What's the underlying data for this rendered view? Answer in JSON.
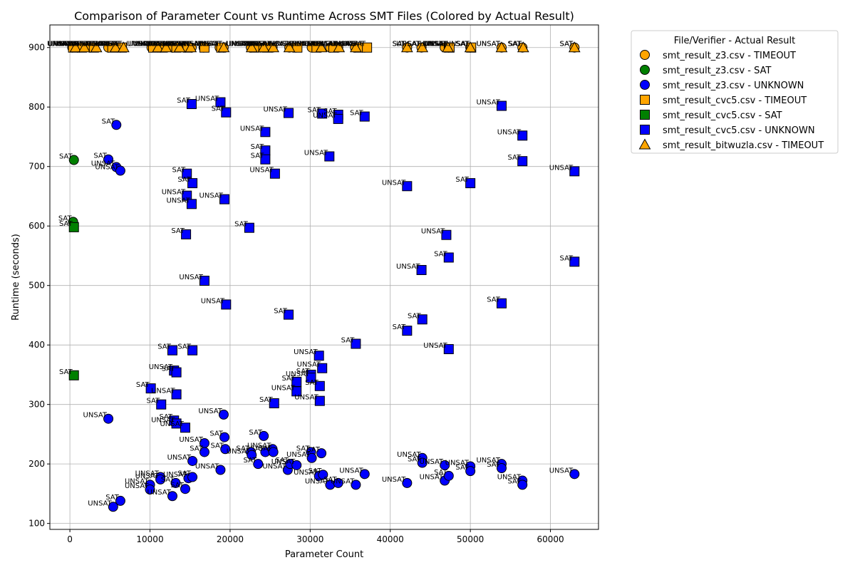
{
  "chart_data": {
    "type": "scatter",
    "title": "Comparison of Parameter Count vs Runtime Across SMT Files (Colored by Actual Result)",
    "xlabel": "Parameter Count",
    "ylabel": "Runtime (seconds)",
    "xlim": [
      -2500,
      66000
    ],
    "ylim": [
      90,
      938
    ],
    "xticks": [
      0,
      10000,
      20000,
      30000,
      40000,
      50000,
      60000
    ],
    "yticks": [
      100,
      200,
      300,
      400,
      500,
      600,
      700,
      800,
      900
    ],
    "grid": true,
    "legend_title": "File/Verifier - Actual Result",
    "legend_position": "outside-right-top",
    "colors": {
      "TIMEOUT": "#ffa500",
      "SAT": "#008000",
      "UNKNOWN": "#0000ff"
    },
    "series": [
      {
        "name": "smt_result_z3.csv - TIMEOUT",
        "marker": "circle",
        "color": "#ffa500",
        "points": [
          [
            300,
            900,
            "UNSAT"
          ],
          [
            1200,
            900,
            "UNSAT"
          ],
          [
            2500,
            900,
            "UNSAT"
          ],
          [
            4800,
            900,
            "UNSAT"
          ],
          [
            6300,
            900,
            "UNSAT"
          ],
          [
            10200,
            900,
            "UNSAT"
          ],
          [
            11300,
            900,
            "UNSAT"
          ],
          [
            12800,
            900,
            "UNSAT"
          ],
          [
            14400,
            900,
            "UNSAT"
          ],
          [
            15200,
            900,
            "UNSAT"
          ],
          [
            16700,
            900,
            "UNSAT"
          ],
          [
            18700,
            900,
            "UNSAT"
          ],
          [
            19200,
            900,
            "UNSAT"
          ],
          [
            22600,
            900,
            "UNSAT"
          ],
          [
            23800,
            900,
            "UNSAT"
          ],
          [
            25300,
            900,
            "UNSAT"
          ],
          [
            27400,
            900,
            "UNSAT"
          ],
          [
            28200,
            900,
            "UNSAT"
          ],
          [
            30200,
            900,
            "UNSAT"
          ],
          [
            31200,
            900,
            "UNSAT"
          ],
          [
            32500,
            900,
            "UNSAT"
          ],
          [
            33500,
            900,
            "UNSAT"
          ],
          [
            35600,
            900,
            "UNSAT"
          ],
          [
            36800,
            900,
            "UNSAT"
          ],
          [
            42100,
            900,
            "SAT"
          ],
          [
            43900,
            900,
            "UNSAT"
          ],
          [
            46800,
            900,
            "UNSAT"
          ],
          [
            47300,
            900,
            "UNSAT"
          ],
          [
            50000,
            900,
            "SAT"
          ],
          [
            53900,
            900,
            "UNSAT"
          ],
          [
            56500,
            900,
            "SAT"
          ],
          [
            63000,
            900,
            "SAT"
          ]
        ]
      },
      {
        "name": "smt_result_z3.csv - SAT",
        "marker": "circle",
        "color": "#008000",
        "points": [
          [
            500,
            711,
            "SAT"
          ],
          [
            400,
            607,
            "SAT"
          ]
        ]
      },
      {
        "name": "smt_result_z3.csv - UNKNOWN",
        "marker": "circle",
        "color": "#0000ff",
        "points": [
          [
            5800,
            770,
            "SAT"
          ],
          [
            4800,
            712,
            "SAT"
          ],
          [
            5800,
            699,
            "UNSAT"
          ],
          [
            6300,
            693,
            "UNSAT"
          ],
          [
            4800,
            276,
            "UNSAT"
          ],
          [
            6300,
            138,
            "SAT"
          ],
          [
            5400,
            128,
            "UNSAT"
          ],
          [
            10000,
            165,
            "UNSAT"
          ],
          [
            10000,
            157,
            "UNSAT"
          ],
          [
            11300,
            178,
            "UNSAT"
          ],
          [
            11300,
            174,
            "UNSAT"
          ],
          [
            12800,
            146,
            "UNSAT"
          ],
          [
            13200,
            168,
            "SAT"
          ],
          [
            14400,
            158,
            "SAT"
          ],
          [
            14800,
            176,
            "UNSAT"
          ],
          [
            15300,
            205,
            "UNSAT"
          ],
          [
            15300,
            178,
            "SAT"
          ],
          [
            16800,
            235,
            "UNSAT"
          ],
          [
            16800,
            220,
            "SAT"
          ],
          [
            18800,
            190,
            "UNSAT"
          ],
          [
            19200,
            283,
            "UNSAT"
          ],
          [
            19300,
            245,
            "SAT"
          ],
          [
            19400,
            225,
            "SAT"
          ],
          [
            22600,
            220,
            "SAT"
          ],
          [
            22700,
            215,
            "UNSAT"
          ],
          [
            23500,
            200,
            "SAT"
          ],
          [
            24200,
            247,
            "SAT"
          ],
          [
            24400,
            220,
            "SAT"
          ],
          [
            25300,
            225,
            "UNSAT"
          ],
          [
            25400,
            220,
            "SAT"
          ],
          [
            27200,
            190,
            "UNSAT"
          ],
          [
            27500,
            200,
            "SAT"
          ],
          [
            28300,
            198,
            "UNSAT"
          ],
          [
            30100,
            220,
            "SAT"
          ],
          [
            30200,
            210,
            "UNSAT"
          ],
          [
            31100,
            180,
            "UNSAT"
          ],
          [
            31400,
            218,
            "SAT"
          ],
          [
            31600,
            182,
            "SAT"
          ],
          [
            32500,
            165,
            "UNSAT"
          ],
          [
            33500,
            168,
            "SAT"
          ],
          [
            35700,
            165,
            "UNSAT"
          ],
          [
            36800,
            183,
            "UNSAT"
          ],
          [
            42100,
            168,
            "UNSAT"
          ],
          [
            44000,
            210,
            "UNSAT"
          ],
          [
            44000,
            202,
            "SAT"
          ],
          [
            46800,
            198,
            "UNSAT"
          ],
          [
            46800,
            172,
            "UNSAT"
          ],
          [
            47300,
            180,
            "SAT"
          ],
          [
            50000,
            196,
            "UNSAT"
          ],
          [
            50000,
            188,
            "SAT"
          ],
          [
            53900,
            200,
            "UNSAT"
          ],
          [
            53900,
            193,
            "SAT"
          ],
          [
            56500,
            172,
            "UNSAT"
          ],
          [
            56500,
            165,
            "SAT"
          ],
          [
            63000,
            183,
            "UNSAT"
          ]
        ]
      },
      {
        "name": "smt_result_cvc5.csv - TIMEOUT",
        "marker": "square",
        "color": "#ffa500",
        "points": [
          [
            400,
            900,
            "UNSAT"
          ],
          [
            1500,
            900,
            "UNSAT"
          ],
          [
            3000,
            900,
            "UNSAT"
          ],
          [
            5300,
            900,
            "UNSAT"
          ],
          [
            6500,
            900,
            "UNSAT"
          ],
          [
            10400,
            900,
            "UNSAT"
          ],
          [
            11600,
            900,
            "UNSAT"
          ],
          [
            13300,
            900,
            "UNSAT"
          ],
          [
            14700,
            900,
            "UNSAT"
          ],
          [
            16800,
            900,
            "UNSAT"
          ],
          [
            18900,
            900,
            "UNSAT"
          ],
          [
            23000,
            900,
            "UNSAT"
          ],
          [
            24600,
            900,
            "UNSAT"
          ],
          [
            28400,
            900,
            "UNSAT"
          ],
          [
            30800,
            900,
            "UNSAT"
          ],
          [
            32900,
            900,
            "UNSAT"
          ],
          [
            36000,
            900,
            "UNSAT"
          ],
          [
            37100,
            900,
            "UNSAT"
          ],
          [
            47400,
            900,
            "UNSAT"
          ],
          [
            50100,
            900,
            "UNSAT"
          ]
        ]
      },
      {
        "name": "smt_result_cvc5.csv - SAT",
        "marker": "square",
        "color": "#008000",
        "points": [
          [
            500,
            598,
            "SAT"
          ],
          [
            500,
            349,
            "SAT"
          ]
        ]
      },
      {
        "name": "smt_result_cvc5.csv - UNKNOWN",
        "marker": "square",
        "color": "#0000ff",
        "points": [
          [
            15200,
            805,
            "SAT"
          ],
          [
            18800,
            808,
            "UNSAT"
          ],
          [
            19500,
            791,
            "SAT"
          ],
          [
            27300,
            790,
            "UNSAT"
          ],
          [
            31500,
            789,
            "SAT"
          ],
          [
            33500,
            787,
            "SAT"
          ],
          [
            33500,
            780,
            "UNSAT"
          ],
          [
            36800,
            784,
            "SAT"
          ],
          [
            24400,
            758,
            "UNSAT"
          ],
          [
            24400,
            727,
            "SAT"
          ],
          [
            24400,
            712,
            "SAT"
          ],
          [
            32400,
            717,
            "UNSAT"
          ],
          [
            14600,
            688,
            "SAT"
          ],
          [
            15300,
            672,
            "SAT"
          ],
          [
            25600,
            688,
            "UNSAT"
          ],
          [
            14600,
            651,
            "UNSAT"
          ],
          [
            15200,
            637,
            "UNSAT"
          ],
          [
            19300,
            645,
            "UNSAT"
          ],
          [
            22400,
            597,
            "SAT"
          ],
          [
            14500,
            586,
            "SAT"
          ],
          [
            16800,
            508,
            "UNSAT"
          ],
          [
            19500,
            468,
            "UNSAT"
          ],
          [
            27300,
            451,
            "SAT"
          ],
          [
            35700,
            402,
            "SAT"
          ],
          [
            31100,
            382,
            "UNSAT"
          ],
          [
            31500,
            361,
            "UNSAT"
          ],
          [
            12800,
            391,
            "SAT"
          ],
          [
            15300,
            391,
            "SAT"
          ],
          [
            13000,
            357,
            "UNSAT"
          ],
          [
            13300,
            354,
            "SAT"
          ],
          [
            10100,
            327,
            "SAT"
          ],
          [
            13300,
            317,
            "UNSAT"
          ],
          [
            11400,
            300,
            "SAT"
          ],
          [
            25500,
            302,
            "SAT"
          ],
          [
            30100,
            350,
            "SAT"
          ],
          [
            30100,
            345,
            "UNSAT"
          ],
          [
            28300,
            338,
            "SAT"
          ],
          [
            28300,
            322,
            "UNSAT"
          ],
          [
            31200,
            331,
            "SAT"
          ],
          [
            31200,
            306,
            "UNSAT"
          ],
          [
            13000,
            273,
            "SAT"
          ],
          [
            13300,
            268,
            "UNSAT"
          ],
          [
            14400,
            261,
            "UNSAT"
          ],
          [
            53900,
            802,
            "UNSAT"
          ],
          [
            56500,
            752,
            "UNSAT"
          ],
          [
            56500,
            709,
            "SAT"
          ],
          [
            63000,
            692,
            "UNSAT"
          ],
          [
            42100,
            667,
            "UNSAT"
          ],
          [
            50000,
            672,
            "SAT"
          ],
          [
            47000,
            585,
            "UNSAT"
          ],
          [
            47300,
            547,
            "SAT"
          ],
          [
            43900,
            526,
            "UNSAT"
          ],
          [
            63000,
            540,
            "SAT"
          ],
          [
            53900,
            470,
            "SAT"
          ],
          [
            44000,
            443,
            "SAT"
          ],
          [
            42100,
            424,
            "SAT"
          ],
          [
            47300,
            393,
            "UNSAT"
          ]
        ]
      },
      {
        "name": "smt_result_bitwuzla.csv - TIMEOUT",
        "marker": "triangle",
        "color": "#ffa500",
        "points": [
          [
            700,
            900,
            "UNSAT"
          ],
          [
            1800,
            900,
            "UNSAT"
          ],
          [
            3300,
            900,
            "UNSAT"
          ],
          [
            5700,
            900,
            "UNSAT"
          ],
          [
            6700,
            900,
            "UNSAT"
          ],
          [
            11000,
            900,
            "UNSAT"
          ],
          [
            12000,
            900,
            "UNSAT"
          ],
          [
            13700,
            900,
            "UNSAT"
          ],
          [
            15100,
            900,
            "UNSAT"
          ],
          [
            19200,
            900,
            "UNSAT"
          ],
          [
            22700,
            900,
            "UNSAT"
          ],
          [
            24200,
            900,
            "UNSAT"
          ],
          [
            25400,
            900,
            "UNSAT"
          ],
          [
            27400,
            900,
            "UNSAT"
          ],
          [
            31400,
            900,
            "UNSAT"
          ],
          [
            33600,
            900,
            "UNSAT"
          ],
          [
            35700,
            900,
            "UNSAT"
          ],
          [
            42100,
            900,
            "SAT"
          ],
          [
            44000,
            900,
            "SAT"
          ],
          [
            47200,
            900,
            "UNSAT"
          ],
          [
            50000,
            900,
            "SAT"
          ],
          [
            53900,
            900,
            "UNSAT"
          ],
          [
            56600,
            900,
            "SAT"
          ],
          [
            63000,
            900,
            "SAT"
          ]
        ]
      }
    ]
  }
}
